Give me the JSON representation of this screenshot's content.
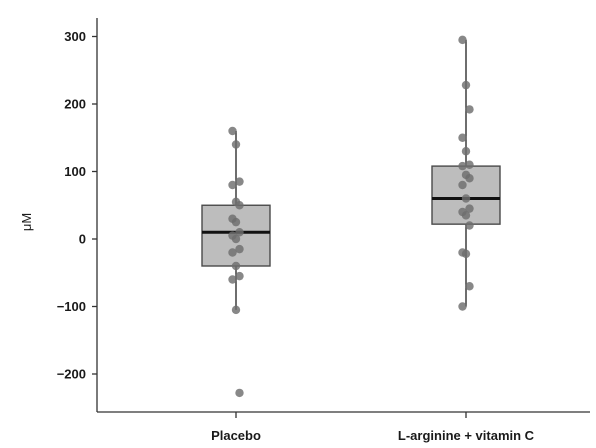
{
  "chart_data": {
    "type": "box",
    "ylabel": "μM",
    "ylim": [
      -260,
      330
    ],
    "yticks": [
      {
        "value": 300,
        "label": "300"
      },
      {
        "value": 200,
        "label": "200"
      },
      {
        "value": 100,
        "label": "100"
      },
      {
        "value": 0,
        "label": "0"
      },
      {
        "value": -100,
        "label": "−100"
      },
      {
        "value": -200,
        "label": "−200"
      }
    ],
    "grid": false,
    "legend": "none",
    "colors": {
      "box_fill": "#bdbdbd",
      "box_edge": "#4a4a4a",
      "median": "#111111",
      "point": "#6e6e6e",
      "axis": "#333333"
    },
    "categories": [
      {
        "label": "Placebo",
        "stats": {
          "whisker_low": -105,
          "q1": -40,
          "median": 10,
          "q3": 50,
          "whisker_high": 160
        },
        "points": [
          160,
          140,
          85,
          80,
          55,
          50,
          30,
          25,
          10,
          5,
          0,
          -15,
          -20,
          -40,
          -55,
          -60,
          -105,
          -228
        ]
      },
      {
        "label": "L-arginine + vitamin C",
        "stats": {
          "whisker_low": -100,
          "q1": 22,
          "median": 60,
          "q3": 108,
          "whisker_high": 295
        },
        "points": [
          295,
          228,
          192,
          150,
          130,
          110,
          108,
          95,
          90,
          80,
          60,
          45,
          40,
          35,
          20,
          -20,
          -22,
          -70,
          -100
        ]
      }
    ]
  }
}
